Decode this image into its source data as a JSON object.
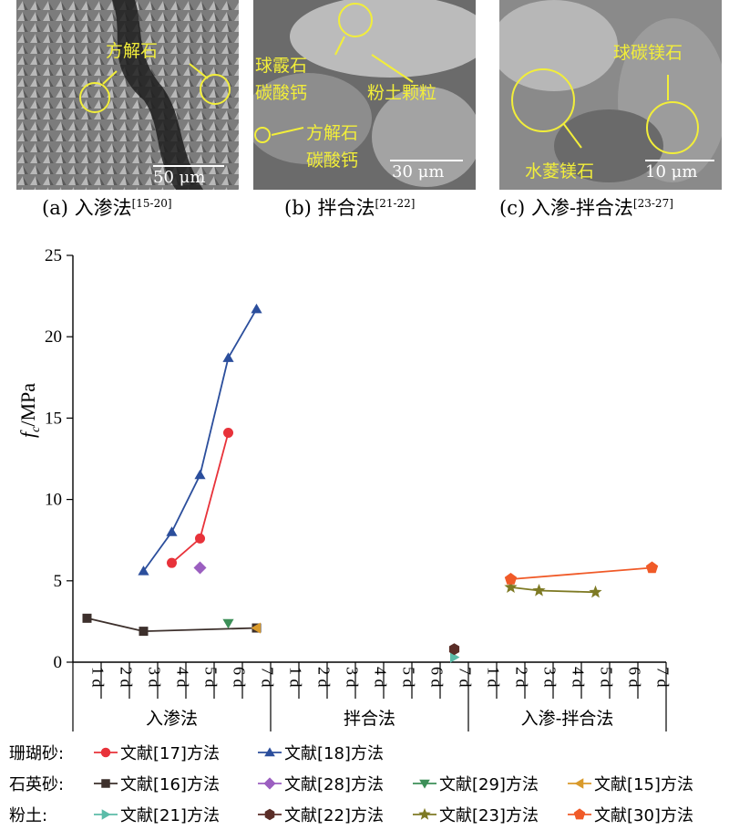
{
  "panels": [
    {
      "caption_main": "(a) 入渗法",
      "caption_ref": "[15-20]",
      "labels": [
        "方解石"
      ],
      "scale": "50 μm"
    },
    {
      "caption_main": "(b) 拌合法",
      "caption_ref": "[21-22]",
      "labels": [
        "球霰石",
        "碳酸钙",
        "粉土颗粒",
        "方解石",
        "碳酸钙"
      ],
      "scale": "30 μm"
    },
    {
      "caption_main": "(c) 入渗-拌合法",
      "caption_ref": "[23-27]",
      "labels": [
        "球碳镁石",
        "水菱镁石"
      ],
      "scale": "10 μm"
    }
  ],
  "legend": {
    "categories": [
      "珊瑚砂:",
      "石英砂:",
      "粉土:"
    ]
  },
  "chart_data": {
    "type": "line",
    "ylabel_main": "f",
    "ylabel_sub": "c",
    "ylabel_unit": "/MPa",
    "ylim": [
      0,
      25
    ],
    "yticks": [
      0,
      5,
      10,
      15,
      20,
      25
    ],
    "groups": [
      {
        "name": "入渗法",
        "days": [
          "1 d",
          "2 d",
          "3 d",
          "4 d",
          "5 d",
          "6 d",
          "7 d"
        ]
      },
      {
        "name": "拌合法",
        "days": [
          "1 d",
          "2 d",
          "3 d",
          "4 d",
          "5 d",
          "6 d",
          "7 d"
        ]
      },
      {
        "name": "入渗-拌合法",
        "days": [
          "1 d",
          "2 d",
          "3 d",
          "4 d",
          "5 d",
          "6 d",
          "7 d"
        ]
      }
    ],
    "series": [
      {
        "name": "文献[17]方法",
        "group": 0,
        "color": "#e8323a",
        "marker": "circle",
        "points": [
          [
            4,
            6.1
          ],
          [
            5,
            7.6
          ],
          [
            6,
            14.1
          ]
        ]
      },
      {
        "name": "文献[18]方法",
        "group": 0,
        "color": "#2b4e9c",
        "marker": "triangle",
        "points": [
          [
            3,
            5.6
          ],
          [
            4,
            8.0
          ],
          [
            5,
            11.5
          ],
          [
            6,
            18.7
          ],
          [
            7,
            21.7
          ]
        ]
      },
      {
        "name": "文献[16]方法",
        "group": 0,
        "color": "#3d302c",
        "marker": "square",
        "points": [
          [
            1,
            2.7
          ],
          [
            3,
            1.9
          ],
          [
            7,
            2.1
          ]
        ]
      },
      {
        "name": "文献[28]方法",
        "group": 0,
        "color": "#9b5fc0",
        "marker": "diamond",
        "points": [
          [
            5,
            5.8
          ]
        ]
      },
      {
        "name": "文献[29]方法",
        "group": 0,
        "color": "#3d8f58",
        "marker": "triangle-down",
        "points": [
          [
            6,
            2.4
          ]
        ]
      },
      {
        "name": "文献[15]方法",
        "group": 0,
        "color": "#d99a2b",
        "marker": "triangle-left",
        "points": [
          [
            7,
            2.1
          ]
        ]
      },
      {
        "name": "文献[21]方法",
        "group": 1,
        "color": "#5bbca8",
        "marker": "triangle-right",
        "points": [
          [
            7,
            0.3
          ]
        ]
      },
      {
        "name": "文献[22]方法",
        "group": 1,
        "color": "#5a2d27",
        "marker": "hexagon",
        "points": [
          [
            7,
            0.8
          ]
        ]
      },
      {
        "name": "文献[23]方法",
        "group": 2,
        "color": "#7e7a24",
        "marker": "star",
        "points": [
          [
            2,
            4.6
          ],
          [
            3,
            4.4
          ],
          [
            5,
            4.3
          ]
        ]
      },
      {
        "name": "文献[30]方法",
        "group": 2,
        "color": "#f05a28",
        "marker": "pentagon",
        "points": [
          [
            2,
            5.1
          ],
          [
            7,
            5.8
          ]
        ]
      }
    ]
  }
}
